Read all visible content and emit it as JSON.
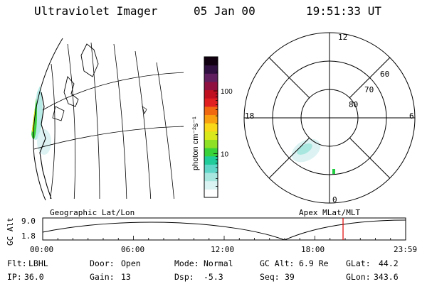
{
  "header": {
    "instrument": "Ultraviolet Imager",
    "date": "05 Jan 00",
    "time": "19:51:33 UT"
  },
  "colorbar": {
    "label": "photon cm⁻²s⁻¹",
    "ticks": [
      {
        "value": 10,
        "label": "10"
      },
      {
        "value": 100,
        "label": "100"
      }
    ],
    "range": [
      2,
      350
    ],
    "colors": [
      "#ffffff",
      "#d9f2f2",
      "#a8e6e0",
      "#5fd6c8",
      "#20cc9a",
      "#3ad23a",
      "#8ee024",
      "#d8e81a",
      "#f8d818",
      "#f8a010",
      "#f06810",
      "#e02020",
      "#c01020",
      "#901040",
      "#602060",
      "#301040",
      "#100010"
    ]
  },
  "polar": {
    "mlt_labels": {
      "top": "12",
      "left": "18",
      "right": "6",
      "bottom": "0"
    },
    "lat_labels": [
      "60",
      "70",
      "80"
    ]
  },
  "timeline": {
    "left_title": "Geographic Lat/Lon",
    "right_title": "Apex MLat/MLT",
    "axis_label": "GC Alt",
    "y_ticks": [
      "9.0",
      "1.8"
    ],
    "x_ticks": [
      "00:00",
      "06:00",
      "12:00",
      "18:00",
      "23:59"
    ],
    "current_time_hours": 19.86,
    "marker_color": "#e00000"
  },
  "info": {
    "filter_label": "Flt:",
    "filter_value": "LBHL",
    "ip_label": "IP:",
    "ip_value": "36.0",
    "door_label": "Door:",
    "door_value": "Open",
    "gain_label": "Gain:",
    "gain_value": "13",
    "mode_label": "Mode:",
    "mode_value": "Normal",
    "dsp_label": "Dsp:",
    "dsp_value": "-5.3",
    "gcalt_label": "GC Alt:",
    "gcalt_value": "6.9 Re",
    "seq_label": "Seq:",
    "seq_value": "39",
    "glat_label": "GLat:",
    "glat_value": "44.2",
    "glon_label": "GLon:",
    "glon_value": "343.6"
  }
}
